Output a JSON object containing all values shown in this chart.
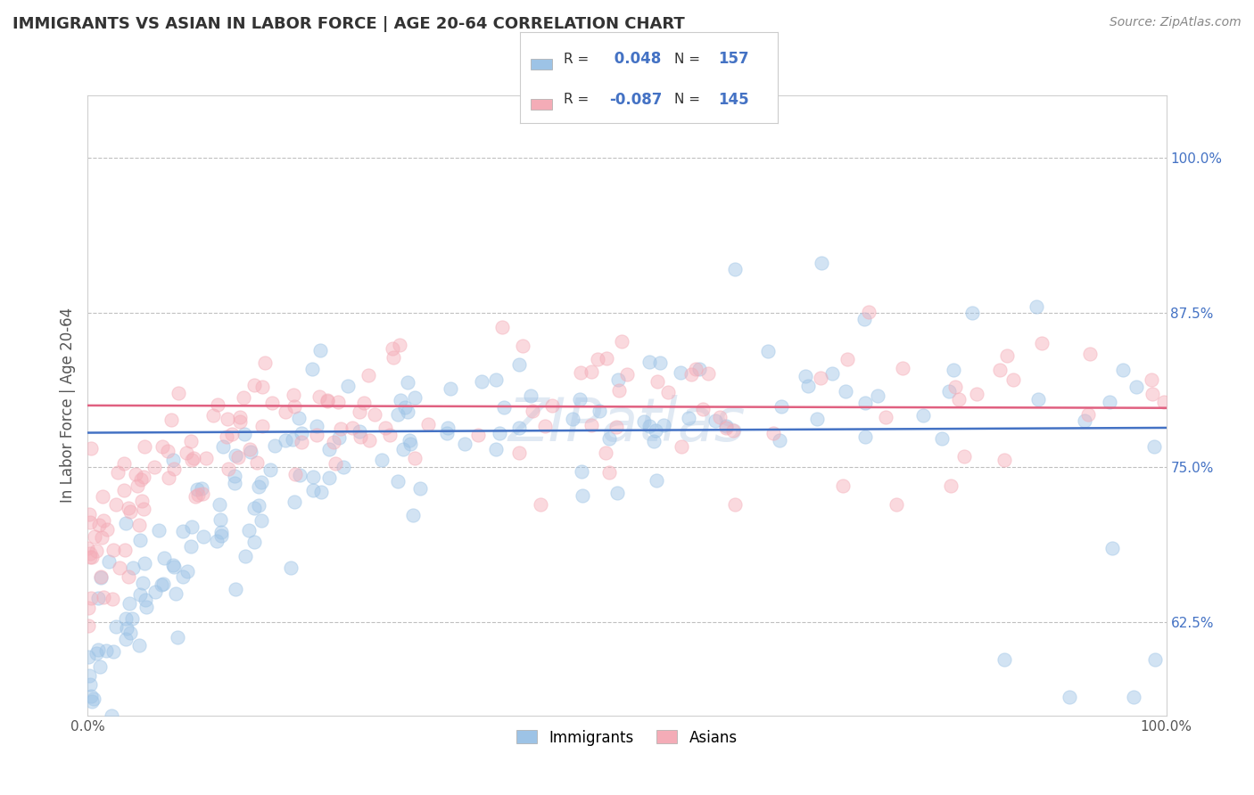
{
  "title": "IMMIGRANTS VS ASIAN IN LABOR FORCE | AGE 20-64 CORRELATION CHART",
  "source": "Source: ZipAtlas.com",
  "ylabel": "In Labor Force | Age 20-64",
  "xlim": [
    0.0,
    1.0
  ],
  "ylim": [
    0.55,
    1.05
  ],
  "yticks": [
    0.625,
    0.75,
    0.875,
    1.0
  ],
  "ytick_labels": [
    "62.5%",
    "75.0%",
    "87.5%",
    "100.0%"
  ],
  "xticks": [
    0.0,
    1.0
  ],
  "xtick_labels": [
    "0.0%",
    "100.0%"
  ],
  "blue_color": "#9dc3e6",
  "pink_color": "#f4acb7",
  "blue_line_color": "#4472c4",
  "pink_line_color": "#e06080",
  "R_blue": 0.048,
  "N_blue": 157,
  "R_pink": -0.087,
  "N_pink": 145,
  "legend_label_blue": "Immigrants",
  "legend_label_pink": "Asians",
  "background_color": "#ffffff",
  "grid_color": "#c0c0c0",
  "title_color": "#333333",
  "axis_label_color": "#555555",
  "stat_value_color": "#4472c4",
  "title_fontsize": 13,
  "axis_label_fontsize": 12,
  "tick_fontsize": 11,
  "scatter_alpha": 0.45,
  "scatter_size": 120,
  "seed": 42,
  "blue_trend_intercept": 0.778,
  "blue_trend_slope": 0.004,
  "pink_trend_intercept": 0.8,
  "pink_trend_slope": -0.002
}
